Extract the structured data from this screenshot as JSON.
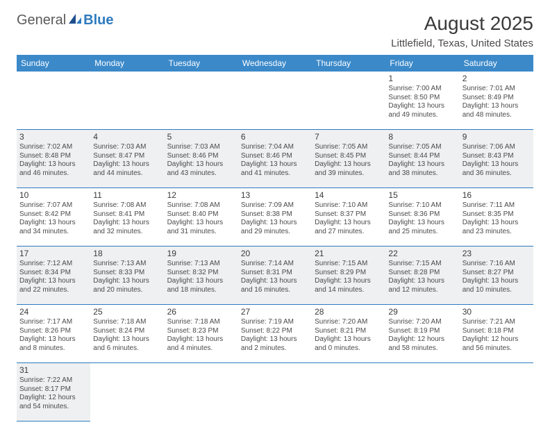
{
  "logo": {
    "part1": "General",
    "part2": "Blue"
  },
  "title": "August 2025",
  "location": "Littlefield, Texas, United States",
  "headerColor": "#3b89c9",
  "borderColor": "#2e7bc0",
  "shadedColor": "#eef0f1",
  "weekdays": [
    "Sunday",
    "Monday",
    "Tuesday",
    "Wednesday",
    "Thursday",
    "Friday",
    "Saturday"
  ],
  "firstWeekday": 5,
  "daysInMonth": 31,
  "days": {
    "1": {
      "sunrise": "7:00 AM",
      "sunset": "8:50 PM",
      "daylight": "13 hours and 49 minutes."
    },
    "2": {
      "sunrise": "7:01 AM",
      "sunset": "8:49 PM",
      "daylight": "13 hours and 48 minutes."
    },
    "3": {
      "sunrise": "7:02 AM",
      "sunset": "8:48 PM",
      "daylight": "13 hours and 46 minutes."
    },
    "4": {
      "sunrise": "7:03 AM",
      "sunset": "8:47 PM",
      "daylight": "13 hours and 44 minutes."
    },
    "5": {
      "sunrise": "7:03 AM",
      "sunset": "8:46 PM",
      "daylight": "13 hours and 43 minutes."
    },
    "6": {
      "sunrise": "7:04 AM",
      "sunset": "8:46 PM",
      "daylight": "13 hours and 41 minutes."
    },
    "7": {
      "sunrise": "7:05 AM",
      "sunset": "8:45 PM",
      "daylight": "13 hours and 39 minutes."
    },
    "8": {
      "sunrise": "7:05 AM",
      "sunset": "8:44 PM",
      "daylight": "13 hours and 38 minutes."
    },
    "9": {
      "sunrise": "7:06 AM",
      "sunset": "8:43 PM",
      "daylight": "13 hours and 36 minutes."
    },
    "10": {
      "sunrise": "7:07 AM",
      "sunset": "8:42 PM",
      "daylight": "13 hours and 34 minutes."
    },
    "11": {
      "sunrise": "7:08 AM",
      "sunset": "8:41 PM",
      "daylight": "13 hours and 32 minutes."
    },
    "12": {
      "sunrise": "7:08 AM",
      "sunset": "8:40 PM",
      "daylight": "13 hours and 31 minutes."
    },
    "13": {
      "sunrise": "7:09 AM",
      "sunset": "8:38 PM",
      "daylight": "13 hours and 29 minutes."
    },
    "14": {
      "sunrise": "7:10 AM",
      "sunset": "8:37 PM",
      "daylight": "13 hours and 27 minutes."
    },
    "15": {
      "sunrise": "7:10 AM",
      "sunset": "8:36 PM",
      "daylight": "13 hours and 25 minutes."
    },
    "16": {
      "sunrise": "7:11 AM",
      "sunset": "8:35 PM",
      "daylight": "13 hours and 23 minutes."
    },
    "17": {
      "sunrise": "7:12 AM",
      "sunset": "8:34 PM",
      "daylight": "13 hours and 22 minutes."
    },
    "18": {
      "sunrise": "7:13 AM",
      "sunset": "8:33 PM",
      "daylight": "13 hours and 20 minutes."
    },
    "19": {
      "sunrise": "7:13 AM",
      "sunset": "8:32 PM",
      "daylight": "13 hours and 18 minutes."
    },
    "20": {
      "sunrise": "7:14 AM",
      "sunset": "8:31 PM",
      "daylight": "13 hours and 16 minutes."
    },
    "21": {
      "sunrise": "7:15 AM",
      "sunset": "8:29 PM",
      "daylight": "13 hours and 14 minutes."
    },
    "22": {
      "sunrise": "7:15 AM",
      "sunset": "8:28 PM",
      "daylight": "13 hours and 12 minutes."
    },
    "23": {
      "sunrise": "7:16 AM",
      "sunset": "8:27 PM",
      "daylight": "13 hours and 10 minutes."
    },
    "24": {
      "sunrise": "7:17 AM",
      "sunset": "8:26 PM",
      "daylight": "13 hours and 8 minutes."
    },
    "25": {
      "sunrise": "7:18 AM",
      "sunset": "8:24 PM",
      "daylight": "13 hours and 6 minutes."
    },
    "26": {
      "sunrise": "7:18 AM",
      "sunset": "8:23 PM",
      "daylight": "13 hours and 4 minutes."
    },
    "27": {
      "sunrise": "7:19 AM",
      "sunset": "8:22 PM",
      "daylight": "13 hours and 2 minutes."
    },
    "28": {
      "sunrise": "7:20 AM",
      "sunset": "8:21 PM",
      "daylight": "13 hours and 0 minutes."
    },
    "29": {
      "sunrise": "7:20 AM",
      "sunset": "8:19 PM",
      "daylight": "12 hours and 58 minutes."
    },
    "30": {
      "sunrise": "7:21 AM",
      "sunset": "8:18 PM",
      "daylight": "12 hours and 56 minutes."
    },
    "31": {
      "sunrise": "7:22 AM",
      "sunset": "8:17 PM",
      "daylight": "12 hours and 54 minutes."
    }
  },
  "labels": {
    "sunrise": "Sunrise: ",
    "sunset": "Sunset: ",
    "daylight": "Daylight: "
  }
}
